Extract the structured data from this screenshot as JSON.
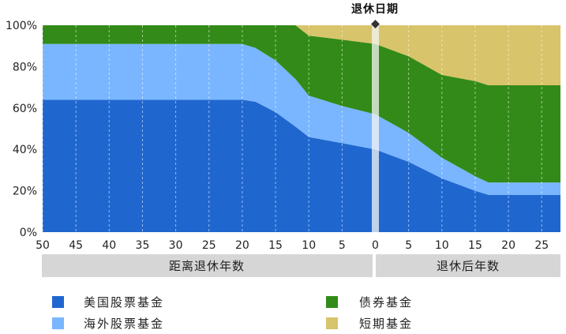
{
  "chart_data": {
    "type": "area",
    "stacked": true,
    "x_unit_note": "",
    "ylim": [
      0,
      100
    ],
    "yticks": [
      "0%",
      "20%",
      "40%",
      "60%",
      "80%",
      "100%"
    ],
    "xticks_before": [
      "50",
      "45",
      "40",
      "35",
      "30",
      "25",
      "20",
      "15",
      "10",
      "5",
      "0"
    ],
    "xticks_after": [
      "5",
      "10",
      "15",
      "20",
      "25"
    ],
    "x_group_before": "距离退休年数",
    "x_group_after": "退休后年数",
    "annotation": "退休日期",
    "grid": "vertical dashed",
    "legend_position": "bottom",
    "x": [
      -50,
      -20,
      -18,
      -15,
      -12,
      -10,
      -5,
      0,
      5,
      10,
      15,
      17,
      20,
      28
    ],
    "series": [
      {
        "name": "美国股票基金",
        "color": "#1f67cf",
        "values": [
          64,
          64,
          63,
          58,
          51,
          46,
          43,
          40,
          34,
          26,
          20,
          18,
          18,
          18
        ]
      },
      {
        "name": "海外股票基金",
        "color": "#79b6ff",
        "values": [
          27,
          27,
          26,
          25,
          23,
          20,
          18,
          17,
          14,
          10,
          7,
          6,
          6,
          6
        ]
      },
      {
        "name": "债券基金",
        "color": "#338a18",
        "values": [
          9,
          9,
          11,
          17,
          26,
          29,
          32,
          34,
          37,
          40,
          46,
          47,
          47,
          47
        ]
      },
      {
        "name": "短期基金",
        "color": "#d8c46a",
        "values": [
          0,
          0,
          0,
          0,
          0,
          5,
          7,
          9,
          15,
          24,
          27,
          29,
          29,
          29
        ]
      }
    ]
  }
}
